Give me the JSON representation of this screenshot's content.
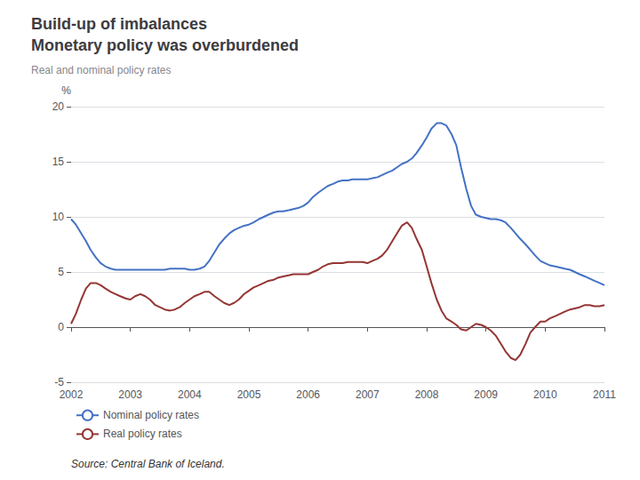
{
  "chart_data": {
    "type": "line",
    "title": "Build-up of imbalances\nMonetary policy was overburdened",
    "subtitle": "Real and nominal policy rates",
    "ylabel": "%",
    "annotations": [
      "Source: Central Bank of Iceland."
    ],
    "xlim": [
      2002,
      2011
    ],
    "xticks": [
      2002,
      2003,
      2004,
      2005,
      2006,
      2007,
      2008,
      2009,
      2010,
      2011
    ],
    "ylim": [
      -5,
      20
    ],
    "yticks": [
      -5,
      0,
      5,
      10,
      15,
      20
    ],
    "grid": true,
    "legend": "lower left",
    "x": [
      2002.0,
      2002.08,
      2002.17,
      2002.25,
      2002.33,
      2002.42,
      2002.5,
      2002.58,
      2002.67,
      2002.75,
      2002.83,
      2002.92,
      2003.0,
      2003.08,
      2003.17,
      2003.25,
      2003.33,
      2003.42,
      2003.5,
      2003.58,
      2003.67,
      2003.75,
      2003.83,
      2003.92,
      2004.0,
      2004.08,
      2004.17,
      2004.25,
      2004.33,
      2004.42,
      2004.5,
      2004.58,
      2004.67,
      2004.75,
      2004.83,
      2004.92,
      2005.0,
      2005.08,
      2005.17,
      2005.25,
      2005.33,
      2005.42,
      2005.5,
      2005.58,
      2005.67,
      2005.75,
      2005.83,
      2005.92,
      2006.0,
      2006.08,
      2006.17,
      2006.25,
      2006.33,
      2006.42,
      2006.5,
      2006.58,
      2006.67,
      2006.75,
      2006.83,
      2006.92,
      2007.0,
      2007.08,
      2007.17,
      2007.25,
      2007.33,
      2007.42,
      2007.5,
      2007.58,
      2007.67,
      2007.75,
      2007.83,
      2007.92,
      2008.0,
      2008.08,
      2008.17,
      2008.25,
      2008.33,
      2008.42,
      2008.5,
      2008.58,
      2008.67,
      2008.75,
      2008.83,
      2008.92,
      2009.0,
      2009.08,
      2009.17,
      2009.25,
      2009.33,
      2009.42,
      2009.5,
      2009.58,
      2009.67,
      2009.75,
      2009.83,
      2009.92,
      2010.0,
      2010.08,
      2010.17,
      2010.25,
      2010.33,
      2010.42,
      2010.5,
      2010.58,
      2010.67,
      2010.75,
      2010.83,
      2010.92,
      2011.0
    ],
    "series": [
      {
        "name": "Nominal policy rates",
        "color": "#4472C4",
        "values": [
          9.8,
          9.3,
          8.5,
          7.8,
          7.0,
          6.3,
          5.8,
          5.5,
          5.3,
          5.2,
          5.2,
          5.2,
          5.2,
          5.2,
          5.2,
          5.2,
          5.2,
          5.2,
          5.2,
          5.2,
          5.3,
          5.3,
          5.3,
          5.3,
          5.2,
          5.2,
          5.3,
          5.5,
          6.0,
          6.8,
          7.5,
          8.0,
          8.5,
          8.8,
          9.0,
          9.2,
          9.3,
          9.5,
          9.8,
          10.0,
          10.2,
          10.4,
          10.5,
          10.5,
          10.6,
          10.7,
          10.8,
          11.0,
          11.3,
          11.8,
          12.2,
          12.5,
          12.8,
          13.0,
          13.2,
          13.3,
          13.3,
          13.4,
          13.4,
          13.4,
          13.4,
          13.5,
          13.6,
          13.8,
          14.0,
          14.2,
          14.5,
          14.8,
          15.0,
          15.3,
          15.8,
          16.5,
          17.2,
          18.0,
          18.5,
          18.5,
          18.3,
          17.5,
          16.5,
          14.5,
          12.5,
          11.0,
          10.2,
          10.0,
          9.9,
          9.8,
          9.8,
          9.7,
          9.5,
          9.0,
          8.5,
          8.0,
          7.5,
          7.0,
          6.5,
          6.0,
          5.8,
          5.6,
          5.5,
          5.4,
          5.3,
          5.2,
          5.0,
          4.8,
          4.6,
          4.4,
          4.2,
          4.0,
          3.8
        ]
      },
      {
        "name": "Real policy rates",
        "color": "#943634",
        "values": [
          0.3,
          1.2,
          2.5,
          3.5,
          4.0,
          4.0,
          3.8,
          3.5,
          3.2,
          3.0,
          2.8,
          2.6,
          2.5,
          2.8,
          3.0,
          2.8,
          2.5,
          2.0,
          1.8,
          1.6,
          1.5,
          1.6,
          1.8,
          2.2,
          2.5,
          2.8,
          3.0,
          3.2,
          3.2,
          2.8,
          2.5,
          2.2,
          2.0,
          2.2,
          2.5,
          3.0,
          3.3,
          3.6,
          3.8,
          4.0,
          4.2,
          4.3,
          4.5,
          4.6,
          4.7,
          4.8,
          4.8,
          4.8,
          4.8,
          5.0,
          5.2,
          5.5,
          5.7,
          5.8,
          5.8,
          5.8,
          5.9,
          5.9,
          5.9,
          5.9,
          5.8,
          6.0,
          6.2,
          6.5,
          7.0,
          7.8,
          8.5,
          9.2,
          9.5,
          9.0,
          8.0,
          7.0,
          5.5,
          4.0,
          2.5,
          1.5,
          0.8,
          0.5,
          0.2,
          -0.2,
          -0.3,
          0.0,
          0.3,
          0.2,
          0.0,
          -0.3,
          -0.8,
          -1.5,
          -2.2,
          -2.8,
          -3.0,
          -2.5,
          -1.5,
          -0.5,
          0.0,
          0.5,
          0.5,
          0.8,
          1.0,
          1.2,
          1.4,
          1.6,
          1.7,
          1.8,
          2.0,
          2.0,
          1.9,
          1.9,
          2.0
        ]
      }
    ]
  }
}
